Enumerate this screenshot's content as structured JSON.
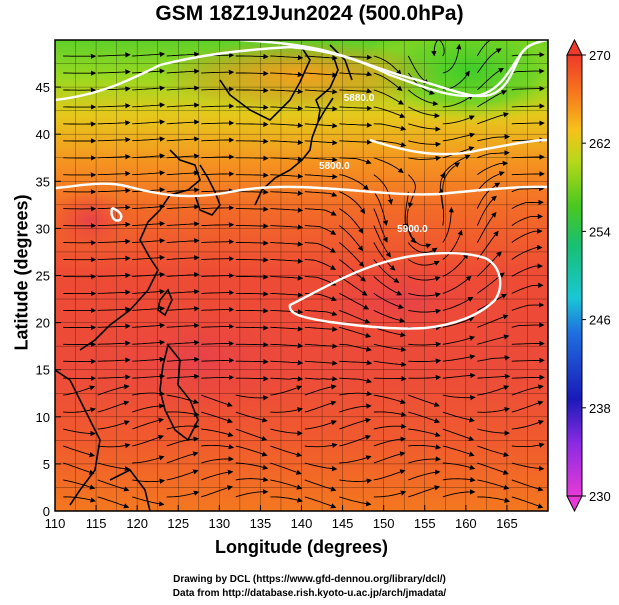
{
  "title": "GSM 18Z19Jun2024 (500.0hPa)",
  "xlabel": "Longitude (degrees)",
  "ylabel": "Latitude  (degrees)",
  "x_ticks": [
    "110",
    "115",
    "120",
    "125",
    "130",
    "135",
    "140",
    "145",
    "150",
    "155",
    "160",
    "165"
  ],
  "y_ticks": [
    "0",
    "5",
    "10",
    "15",
    "20",
    "25",
    "30",
    "35",
    "40",
    "45"
  ],
  "colorbar": {
    "labels": [
      "230",
      "238",
      "246",
      "254",
      "262",
      "270"
    ],
    "min": 230,
    "max": 270
  },
  "contour_labels": [
    {
      "text": "5880.0",
      "lon": 147,
      "lat": 43.5
    },
    {
      "text": "5800.0",
      "lon": 144,
      "lat": 36.3
    },
    {
      "text": "5900.0",
      "lon": 153.5,
      "lat": 29.6
    }
  ],
  "credits": {
    "line1": "Drawing by DCL (https://www.gfd-dennou.org/library/dcl/)",
    "line2": "Data from http://database.rish.kyoto-u.ac.jp/arch/jmadata/"
  },
  "map_data": {
    "lon_range": [
      110,
      170
    ],
    "lat_range": [
      0,
      50
    ],
    "field": "temperature (K)",
    "level": "500.0hPa",
    "overlay": [
      "streamlines",
      "geopotential height contours"
    ]
  }
}
